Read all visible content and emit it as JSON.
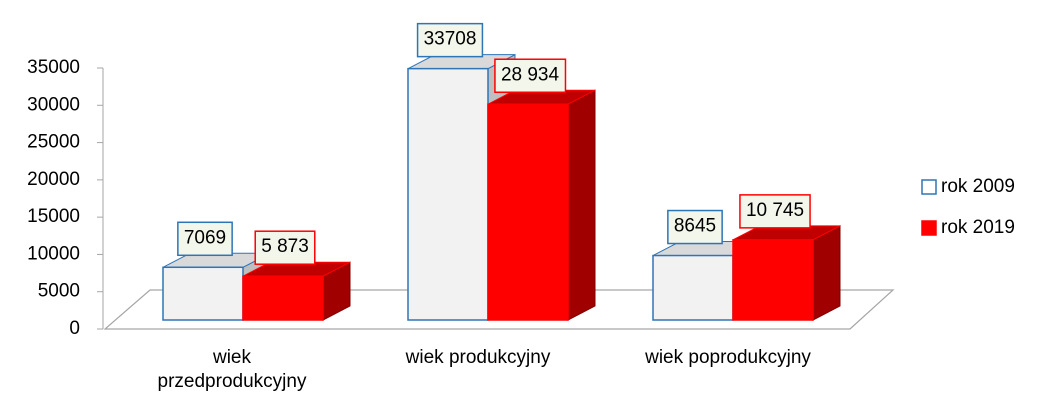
{
  "chart_data": {
    "type": "bar3d",
    "categories": [
      "wiek przedprodukcyjny",
      "wiek produkcyjny",
      "wiek poprodukcyjny"
    ],
    "series": [
      {
        "name": "rok 2009",
        "color": "#f2f2f2",
        "border_color": "#2e75b6",
        "values": [
          7069,
          33708,
          8645
        ]
      },
      {
        "name": "rok 2019",
        "color": "#ff0000",
        "border_color": "#ff0000",
        "values": [
          5873,
          28934,
          10745
        ],
        "value_labels": [
          "5 873",
          "28 934",
          "10 745"
        ]
      }
    ],
    "ylim": [
      0,
      35000
    ],
    "yticks": [
      0,
      5000,
      10000,
      15000,
      20000,
      25000,
      30000,
      35000
    ],
    "legend": "right"
  }
}
